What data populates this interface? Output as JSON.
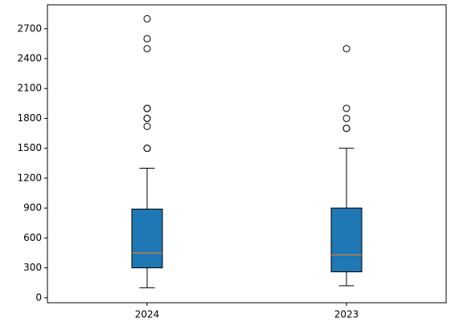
{
  "chart_data": {
    "type": "box",
    "categories": [
      "2024",
      "2023"
    ],
    "boxes": [
      {
        "whislo": 100,
        "q1": 300,
        "med": 450,
        "q3": 890,
        "whishi": 1300,
        "fliers": [
          1500,
          1500,
          1720,
          1800,
          1800,
          1900,
          1900,
          2500,
          2600,
          2800
        ]
      },
      {
        "whislo": 120,
        "q1": 260,
        "med": 430,
        "q3": 900,
        "whishi": 1500,
        "fliers": [
          1700,
          1700,
          1800,
          1900,
          2500
        ]
      }
    ],
    "color": "#1f77b4",
    "median_color": "#ff7f0e",
    "ylim": [
      -50,
      2940
    ],
    "yticks": [
      0,
      300,
      600,
      900,
      1200,
      1500,
      1800,
      2100,
      2400,
      2700
    ]
  }
}
